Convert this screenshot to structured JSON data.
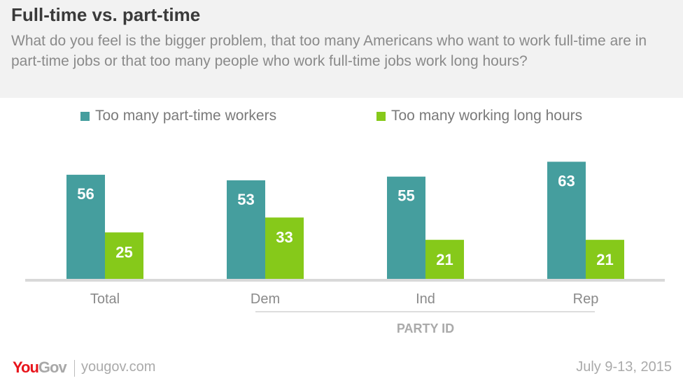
{
  "chart_data": {
    "type": "bar",
    "title": "Full-time vs. part-time",
    "subtitle": "What do you feel is the bigger problem, that too many Americans who want to work full-time are in part-time jobs or that too many people who work full-time jobs work long hours?",
    "categories": [
      "Total",
      "Dem",
      "Ind",
      "Rep"
    ],
    "group_label": "PARTY ID",
    "series": [
      {
        "name": "Too many part-time workers",
        "values": [
          56,
          53,
          55,
          63
        ],
        "color": "#459e9e"
      },
      {
        "name": "Too many working long hours",
        "values": [
          25,
          33,
          21,
          21
        ],
        "color": "#86c91a"
      }
    ],
    "legend_position": "top",
    "grid": false
  },
  "footer": {
    "logo": "YouGov",
    "site": "yougov.com",
    "date": "July 9-13, 2015"
  },
  "colors": {
    "logo_red": "#e8141b",
    "logo_gray": "#a8a8a8"
  }
}
